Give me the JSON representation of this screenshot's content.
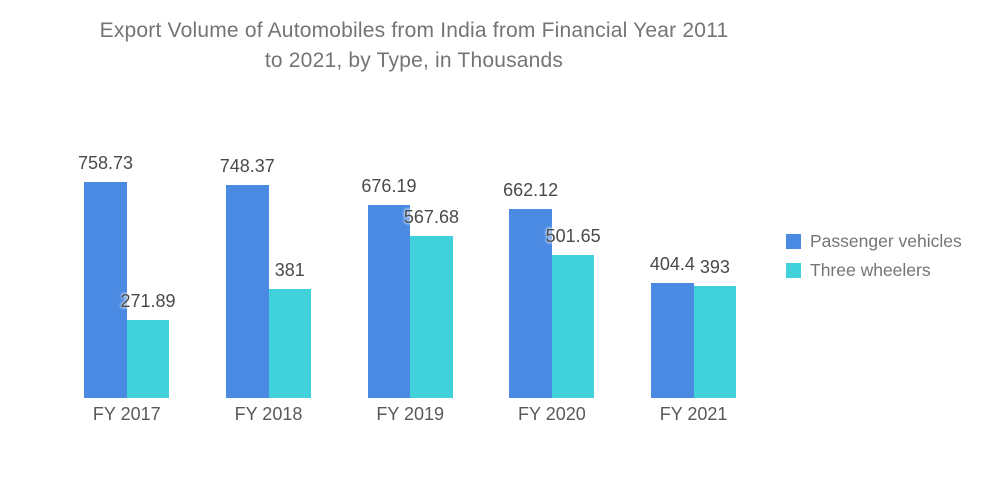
{
  "title": {
    "line1": "Export Volume of Automobiles from India from Financial Year 2011",
    "line2": "to 2021, by Type, in Thousands"
  },
  "legend": {
    "items": [
      {
        "label": "Passenger vehicles",
        "color": "#4a8ae2"
      },
      {
        "label": "Three wheelers",
        "color": "#41d1db"
      }
    ]
  },
  "chart_data": {
    "type": "bar",
    "title": "Export Volume of Automobiles from India from Financial Year 2011 to 2021, by Type, in Thousands",
    "categories": [
      "FY 2017",
      "FY 2018",
      "FY 2019",
      "FY 2020",
      "FY 2021"
    ],
    "series": [
      {
        "name": "Passenger vehicles",
        "color": "#4a8ae2",
        "values": [
          758.73,
          748.37,
          676.19,
          662.12,
          404.4
        ],
        "value_labels": [
          "758.73",
          "748.37",
          "676.19",
          "662.12",
          "404.4"
        ]
      },
      {
        "name": "Three wheelers",
        "color": "#41d1db",
        "values": [
          271.89,
          381,
          567.68,
          501.65,
          393
        ],
        "value_labels": [
          "271.89",
          "381",
          "567.68",
          "501.65",
          "393"
        ]
      }
    ],
    "xlabel": "",
    "ylabel": "",
    "ylim": [
      0,
      800
    ],
    "grid": false,
    "axis_lines": false,
    "data_labels": true,
    "legend_position": "right"
  }
}
